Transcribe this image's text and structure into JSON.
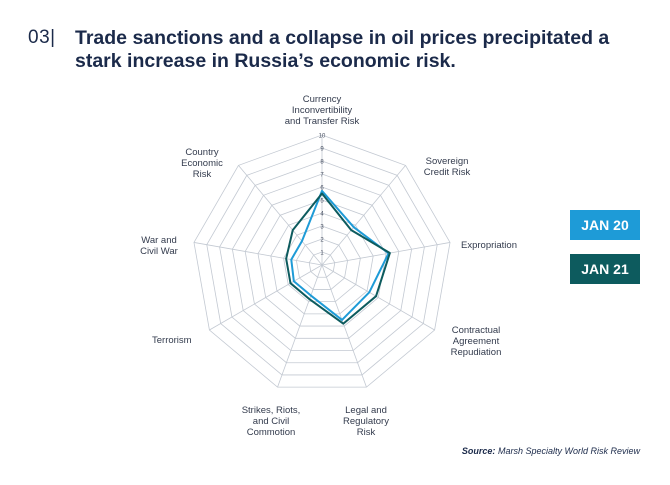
{
  "header": {
    "number": "03|",
    "title": "Trade sanctions and a collapse in oil prices precipitated a stark increase in Russia’s economic risk."
  },
  "colors": {
    "jan20": "#1e9bd7",
    "jan21": "#0d5b5e",
    "grid": "#c3c9d2",
    "text": "#1b2a4a"
  },
  "chart_data": {
    "type": "radar",
    "title": "",
    "axes": [
      "Currency Inconvertibility and Transfer Risk",
      "Sovereign Credit Risk",
      "Expropriation",
      "Contractual Agreement Repudiation",
      "Legal and Regulatory Risk",
      "Strikes, Riots, and Civil Commotion",
      "Terrorism",
      "War and Civil War",
      "Country Economic Risk"
    ],
    "axis_label_lines": [
      [
        "Currency",
        "Inconvertibility",
        "and Transfer Risk"
      ],
      [
        "Sovereign",
        "Credit Risk"
      ],
      [
        "Expropriation"
      ],
      [
        "Contractual",
        "Agreement",
        "Repudiation"
      ],
      [
        "Legal and",
        "Regulatory",
        "Risk"
      ],
      [
        "Strikes, Riots,",
        "and Civil",
        "Commotion"
      ],
      [
        "Terrorism"
      ],
      [
        "War and",
        "Civil War"
      ],
      [
        "Country",
        "Economic",
        "Risk"
      ]
    ],
    "scale": {
      "min": 0,
      "max": 10,
      "ticks": [
        "1",
        "2",
        "3",
        "4",
        "5",
        "6",
        "7",
        "8",
        "9",
        "10"
      ]
    },
    "series": [
      {
        "name": "JAN 20",
        "values": [
          5.7,
          3.8,
          5.2,
          4.2,
          4.5,
          2.5,
          2.5,
          2.4,
          2.4
        ]
      },
      {
        "name": "JAN 21",
        "values": [
          5.5,
          3.5,
          5.3,
          4.8,
          4.8,
          2.8,
          2.8,
          2.8,
          3.5
        ]
      }
    ],
    "legend": "right",
    "grid": true
  },
  "source": {
    "label": "Source:",
    "text": "Marsh Specialty World Risk Review"
  }
}
